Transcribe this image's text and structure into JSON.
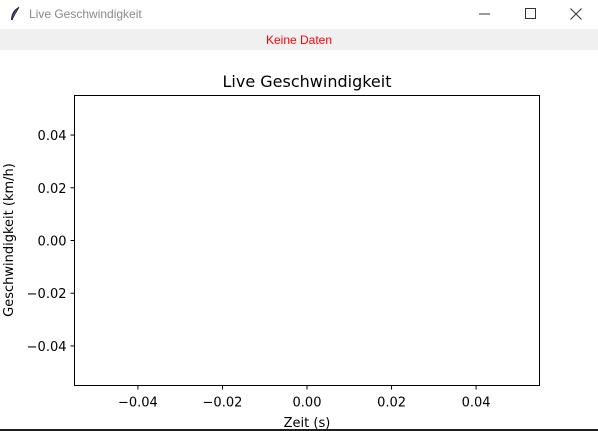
{
  "window": {
    "title": "Live Geschwindigkeit",
    "icon": "feather-icon",
    "controls": [
      "minimize-icon",
      "maximize-icon",
      "close-icon"
    ]
  },
  "status": {
    "text": "Keine Daten",
    "color": "#ff0000"
  },
  "chart_data": {
    "type": "line",
    "title": "Live Geschwindigkeit",
    "xlabel": "Zeit (s)",
    "ylabel": "Geschwindigkeit (km/h)",
    "xlim": [
      -0.055,
      0.055
    ],
    "ylim": [
      -0.055,
      0.055
    ],
    "xticks": [
      -0.04,
      -0.02,
      0.0,
      0.02,
      0.04
    ],
    "yticks": [
      -0.04,
      -0.02,
      0.0,
      0.02,
      0.04
    ],
    "xtick_labels": [
      "−0.04",
      "−0.02",
      "0.00",
      "0.02",
      "0.04"
    ],
    "ytick_labels": [
      "−0.04",
      "−0.02",
      "0.00",
      "0.02",
      "0.04"
    ],
    "grid": false,
    "series": [
      {
        "x": [],
        "y": []
      }
    ]
  }
}
